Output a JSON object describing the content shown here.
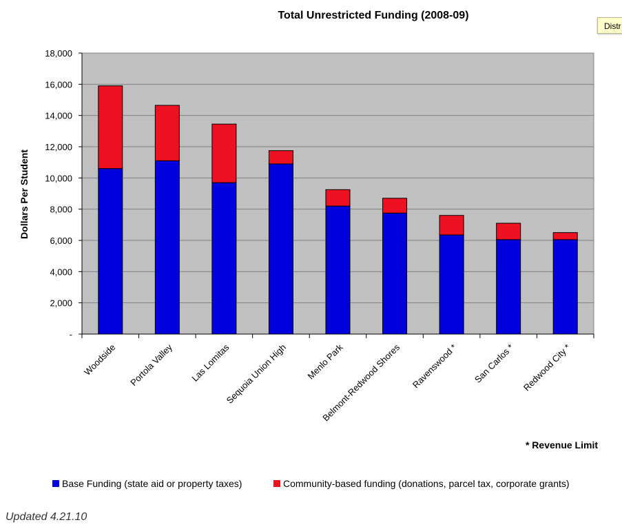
{
  "tooltip": {
    "text": "Distr"
  },
  "updated_text": "Updated 4.21.10",
  "colors": {
    "plot_bg": "#c0c0c0",
    "base": "#0000dd",
    "community": "#ee1122",
    "grid": "#808080"
  },
  "chart_data": {
    "type": "bar",
    "stacked": true,
    "title": "Total Unrestricted Funding (2008-09)",
    "xlabel": "",
    "ylabel": "Dollars Per Student",
    "ylim": [
      0,
      18000
    ],
    "ytick_labels": [
      "-",
      "2,000",
      "4,000",
      "6,000",
      "8,000",
      "10,000",
      "12,000",
      "14,000",
      "16,000",
      "18,000"
    ],
    "grid": true,
    "categories": [
      "Woodside",
      "Portola Valley",
      "Las Lomitas",
      "Sequoia Union High",
      "Menlo Park",
      "Belmont-Redwood Shores",
      "Ravenswood *",
      "San Carlos *",
      "Redwood City *"
    ],
    "series": [
      {
        "name": "Base Funding (state aid or property taxes)",
        "color": "#0000dd",
        "values": [
          10600,
          11100,
          9700,
          10900,
          8200,
          7750,
          6350,
          6050,
          6050
        ]
      },
      {
        "name": "Community-based funding (donations, parcel tax, corporate grants)",
        "color": "#ee1122",
        "values": [
          5300,
          3550,
          3750,
          850,
          1050,
          950,
          1250,
          1050,
          450
        ]
      }
    ],
    "legend_position": "bottom",
    "annotation": "* Revenue Limit"
  }
}
